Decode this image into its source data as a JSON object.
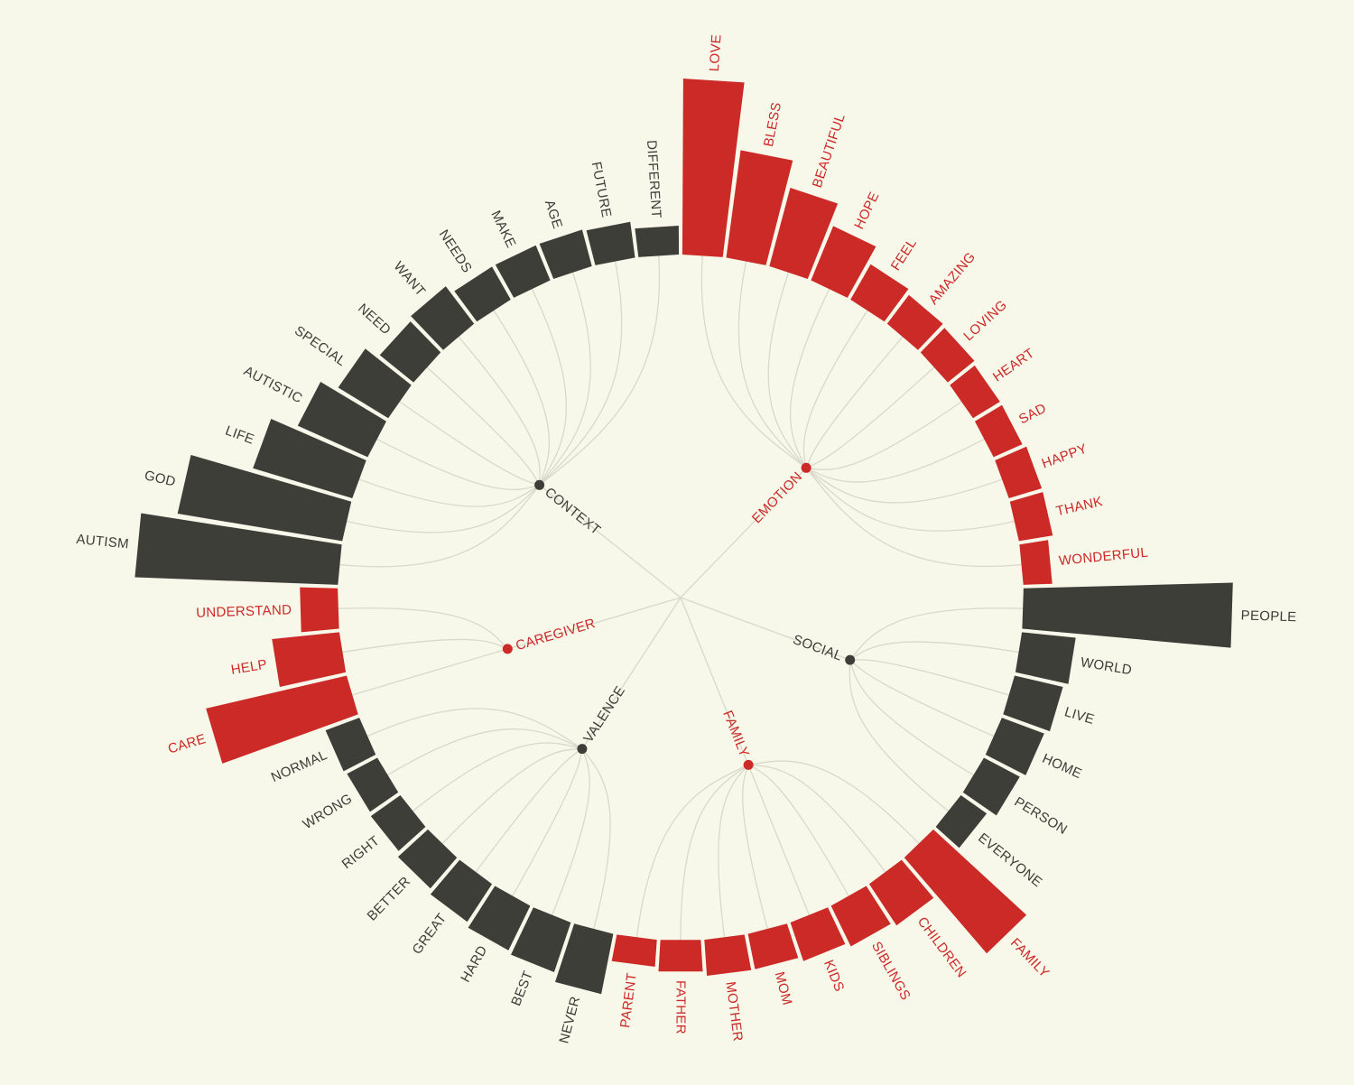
{
  "chart_data": {
    "type": "radial-bar",
    "colors": {
      "red": "#cc2a27",
      "dark": "#3e3e39",
      "link": "#d9d9cb",
      "background": "#f7f7ea"
    },
    "groups": [
      {
        "name": "EMOTION",
        "color": "red",
        "start": 0,
        "end": 11
      },
      {
        "name": "SOCIAL",
        "color": "dark",
        "start": 12,
        "end": 17
      },
      {
        "name": "FAMILY",
        "color": "red",
        "start": 18,
        "end": 24
      },
      {
        "name": "VALENCE",
        "color": "dark",
        "start": 25,
        "end": 32
      },
      {
        "name": "CAREGIVER",
        "color": "red",
        "start": 33,
        "end": 35
      },
      {
        "name": "CONTEXT",
        "color": "dark",
        "start": 36,
        "end": 47
      }
    ],
    "bars": [
      {
        "word": "LOVE",
        "group": "EMOTION",
        "value": 195
      },
      {
        "word": "BLESS",
        "group": "EMOTION",
        "value": 120
      },
      {
        "word": "BEAUTIFUL",
        "group": "EMOTION",
        "value": 90
      },
      {
        "word": "HOPE",
        "group": "EMOTION",
        "value": 65
      },
      {
        "word": "FEEL",
        "group": "EMOTION",
        "value": 45
      },
      {
        "word": "AMAZING",
        "group": "EMOTION",
        "value": 40
      },
      {
        "word": "LOVING",
        "group": "EMOTION",
        "value": 38
      },
      {
        "word": "HEART",
        "group": "EMOTION",
        "value": 35
      },
      {
        "word": "SAD",
        "group": "EMOTION",
        "value": 35
      },
      {
        "word": "HAPPY",
        "group": "EMOTION",
        "value": 38
      },
      {
        "word": "THANK",
        "group": "EMOTION",
        "value": 38
      },
      {
        "word": "WONDERFUL",
        "group": "EMOTION",
        "value": 32
      },
      {
        "word": "PEOPLE",
        "group": "SOCIAL",
        "value": 232
      },
      {
        "word": "WORLD",
        "group": "SOCIAL",
        "value": 60
      },
      {
        "word": "LIVE",
        "group": "SOCIAL",
        "value": 55
      },
      {
        "word": "HOME",
        "group": "SOCIAL",
        "value": 50
      },
      {
        "word": "PERSON",
        "group": "SOCIAL",
        "value": 45
      },
      {
        "word": "EVERYONE",
        "group": "SOCIAL",
        "value": 35
      },
      {
        "word": "FAMILY",
        "group": "FAMILY",
        "value": 140
      },
      {
        "word": "CHILDREN",
        "group": "FAMILY",
        "value": 55
      },
      {
        "word": "SIBLINGS",
        "group": "FAMILY",
        "value": 50
      },
      {
        "word": "KIDS",
        "group": "FAMILY",
        "value": 45
      },
      {
        "word": "MOM",
        "group": "FAMILY",
        "value": 40
      },
      {
        "word": "MOTHER",
        "group": "FAMILY",
        "value": 40
      },
      {
        "word": "FATHER",
        "group": "FAMILY",
        "value": 35
      },
      {
        "word": "PARENT",
        "group": "FAMILY",
        "value": 30
      },
      {
        "word": "NEVER",
        "group": "VALENCE",
        "value": 68
      },
      {
        "word": "BEST",
        "group": "VALENCE",
        "value": 58
      },
      {
        "word": "HARD",
        "group": "VALENCE",
        "value": 55
      },
      {
        "word": "GREAT",
        "group": "VALENCE",
        "value": 50
      },
      {
        "word": "BETTER",
        "group": "VALENCE",
        "value": 45
      },
      {
        "word": "RIGHT",
        "group": "VALENCE",
        "value": 40
      },
      {
        "word": "WRONG",
        "group": "VALENCE",
        "value": 38
      },
      {
        "word": "NORMAL",
        "group": "VALENCE",
        "value": 40
      },
      {
        "word": "CARE",
        "group": "CAREGIVER",
        "value": 160
      },
      {
        "word": "HELP",
        "group": "CAREGIVER",
        "value": 75
      },
      {
        "word": "UNDERSTAND",
        "group": "CAREGIVER",
        "value": 42
      },
      {
        "word": "AUTISM",
        "group": "CONTEXT",
        "value": 225
      },
      {
        "word": "GOD",
        "group": "CONTEXT",
        "value": 185
      },
      {
        "word": "LIFE",
        "group": "CONTEXT",
        "value": 115
      },
      {
        "word": "AUTISTIC",
        "group": "CONTEXT",
        "value": 85
      },
      {
        "word": "SPECIAL",
        "group": "CONTEXT",
        "value": 65
      },
      {
        "word": "NEED",
        "group": "CONTEXT",
        "value": 48
      },
      {
        "word": "WANT",
        "group": "CONTEXT",
        "value": 52
      },
      {
        "word": "NEEDS",
        "group": "CONTEXT",
        "value": 42
      },
      {
        "word": "MAKE",
        "group": "CONTEXT",
        "value": 42
      },
      {
        "word": "AGE",
        "group": "CONTEXT",
        "value": 42
      },
      {
        "word": "FUTURE",
        "group": "CONTEXT",
        "value": 40
      },
      {
        "word": "DIFFERENT",
        "group": "CONTEXT",
        "value": 32
      }
    ]
  }
}
